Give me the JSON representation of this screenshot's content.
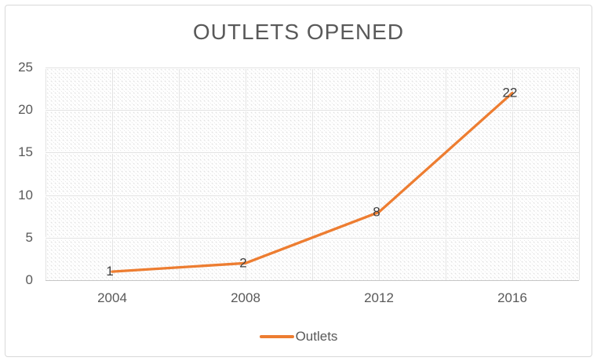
{
  "chart_title": "OUTLETS OPENED",
  "legend": {
    "series_label": "Outlets",
    "position": "bottom"
  },
  "colors": {
    "series_line": "#ED7D31",
    "title_text": "#595959",
    "axis_text": "#595959",
    "data_label_text": "#404040",
    "gridline": "#e2e2e2",
    "axis_line": "#c6c6c6",
    "frame_border": "#d9d9d9",
    "hatch": "#e2e2e2",
    "plot_background": "#ffffff"
  },
  "chart_data": {
    "type": "line",
    "title": "OUTLETS OPENED",
    "x": [
      2004,
      2008,
      2012,
      2016
    ],
    "series": [
      {
        "name": "Outlets",
        "color": "#ED7D31",
        "values": [
          1,
          2,
          8,
          22
        ]
      }
    ],
    "data_labels": [
      "1",
      "2",
      "8",
      "22"
    ],
    "x_axis": {
      "min": 2002,
      "max": 2018,
      "gridline_step": 2,
      "tick_labels": [
        "2004",
        "2008",
        "2012",
        "2016"
      ],
      "tick_values": [
        2004,
        2008,
        2012,
        2016
      ]
    },
    "y_axis": {
      "min": 0,
      "max": 25,
      "step": 5,
      "tick_labels": [
        "0",
        "5",
        "10",
        "15",
        "20",
        "25"
      ]
    },
    "grid": true,
    "legend_position": "bottom",
    "plot_background_pattern": "light-downward-diagonal-hatch"
  }
}
